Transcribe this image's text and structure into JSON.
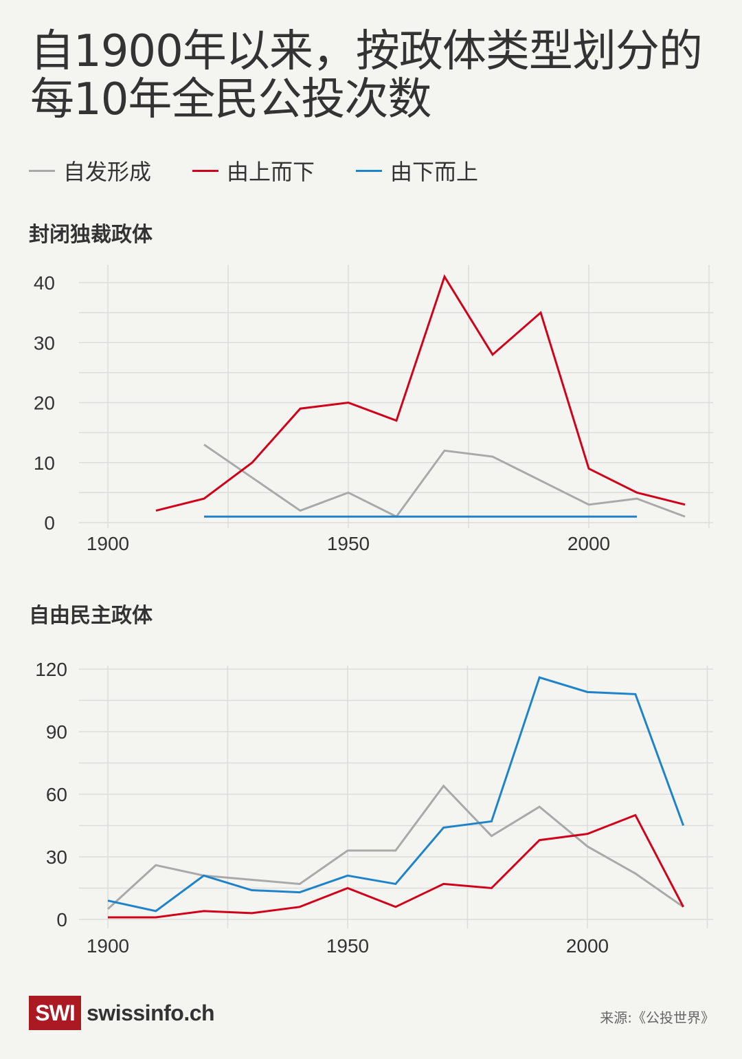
{
  "title": "自1900年以来，按政体类型划分的每10年全民公投次数",
  "legend": [
    {
      "label": "自发形成",
      "color": "#a9a9a9"
    },
    {
      "label": "由上而下",
      "color": "#d0021b"
    },
    {
      "label": "由下而上",
      "color": "#1f83c9"
    }
  ],
  "footer": {
    "logo_box": "SWI",
    "logo_text": "swissinfo.ch",
    "source": "来源:《公投世界》"
  },
  "chart_data": [
    {
      "type": "line",
      "title": "封闭独裁政体",
      "xlabel": "",
      "ylabel": "",
      "xticks": [
        1900,
        1950,
        2000
      ],
      "yticks": [
        0,
        10,
        20,
        30,
        40
      ],
      "ylim": [
        0,
        40
      ],
      "xlim": [
        1900,
        2025
      ],
      "grid": true,
      "series": [
        {
          "name": "自发形成",
          "color": "#a9a9a9",
          "x": [
            1920,
            1930,
            1940,
            1950,
            1960,
            1970,
            1980,
            1990,
            2000,
            2010,
            2020
          ],
          "values": [
            13,
            7.5,
            2,
            5,
            1,
            12,
            11,
            7,
            3,
            4,
            1
          ]
        },
        {
          "name": "由上而下",
          "color": "#d0021b",
          "x": [
            1910,
            1920,
            1930,
            1940,
            1950,
            1960,
            1970,
            1980,
            1990,
            2000,
            2010,
            2020
          ],
          "values": [
            2,
            4,
            10,
            19,
            20,
            17,
            41,
            28,
            35,
            9,
            5,
            3
          ]
        },
        {
          "name": "由下而上",
          "color": "#1f83c9",
          "x": [
            1920,
            1930,
            1940,
            1950,
            1960,
            1970,
            1980,
            1990,
            2000,
            2010
          ],
          "values": [
            1,
            1,
            1,
            1,
            1,
            1,
            1,
            1,
            1,
            1
          ]
        }
      ]
    },
    {
      "type": "line",
      "title": "自由民主政体",
      "xlabel": "",
      "ylabel": "",
      "xticks": [
        1900,
        1950,
        2000
      ],
      "yticks": [
        0,
        30,
        60,
        90,
        120
      ],
      "ylim": [
        0,
        120
      ],
      "xlim": [
        1900,
        2025
      ],
      "grid": true,
      "series": [
        {
          "name": "自发形成",
          "color": "#a9a9a9",
          "x": [
            1900,
            1910,
            1920,
            1930,
            1940,
            1950,
            1960,
            1970,
            1980,
            1990,
            2000,
            2010,
            2020
          ],
          "values": [
            5,
            26,
            21,
            19,
            17,
            33,
            33,
            64,
            40,
            54,
            35,
            22,
            6
          ]
        },
        {
          "name": "由上而下",
          "color": "#d0021b",
          "x": [
            1900,
            1910,
            1920,
            1930,
            1940,
            1950,
            1960,
            1970,
            1980,
            1990,
            2000,
            2010,
            2020
          ],
          "values": [
            1,
            1,
            4,
            3,
            6,
            15,
            6,
            17,
            15,
            38,
            41,
            50,
            6
          ]
        },
        {
          "name": "由下而上",
          "color": "#1f83c9",
          "x": [
            1900,
            1910,
            1920,
            1930,
            1940,
            1950,
            1960,
            1970,
            1980,
            1990,
            2000,
            2010,
            2020
          ],
          "values": [
            9,
            4,
            21,
            14,
            13,
            21,
            17,
            44,
            47,
            116,
            109,
            108,
            45
          ]
        }
      ]
    }
  ]
}
